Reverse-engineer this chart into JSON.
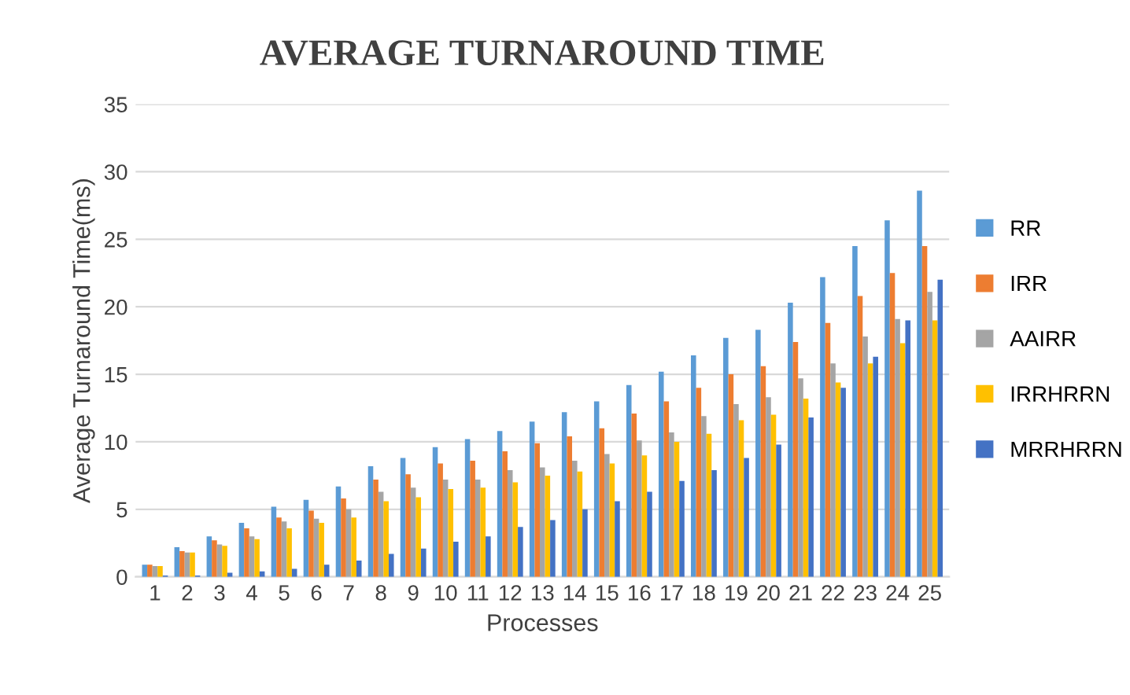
{
  "chart_data": {
    "type": "bar",
    "title": "AVERAGE TURNAROUND TIME",
    "xlabel": "Processes",
    "ylabel": "Average Turnaround Time(ms)",
    "categories": [
      "1",
      "2",
      "3",
      "4",
      "5",
      "6",
      "7",
      "8",
      "9",
      "10",
      "11",
      "12",
      "13",
      "14",
      "15",
      "16",
      "17",
      "18",
      "19",
      "20",
      "21",
      "22",
      "23",
      "24",
      "25"
    ],
    "series": [
      {
        "name": "RR",
        "color": "#5b9bd5",
        "values": [
          0.9,
          2.2,
          3.0,
          4.0,
          5.2,
          5.7,
          6.7,
          8.2,
          8.8,
          9.6,
          10.2,
          10.8,
          11.5,
          12.2,
          13.0,
          14.2,
          15.2,
          16.4,
          17.7,
          18.3,
          20.3,
          22.2,
          24.5,
          26.4,
          28.6
        ]
      },
      {
        "name": "IRR",
        "color": "#ed7d31",
        "values": [
          0.9,
          1.9,
          2.7,
          3.6,
          4.4,
          4.9,
          5.8,
          7.2,
          7.6,
          8.4,
          8.6,
          9.3,
          9.9,
          10.4,
          11.0,
          12.1,
          13.0,
          14.0,
          15.0,
          15.6,
          17.4,
          18.8,
          20.8,
          22.5,
          24.5
        ]
      },
      {
        "name": "AAIRR",
        "color": "#a5a5a5",
        "values": [
          0.8,
          1.8,
          2.4,
          3.0,
          4.1,
          4.3,
          5.0,
          6.3,
          6.6,
          7.2,
          7.2,
          7.9,
          8.1,
          8.6,
          9.1,
          10.1,
          10.7,
          11.9,
          12.8,
          13.3,
          14.7,
          15.8,
          17.8,
          19.1,
          21.1
        ]
      },
      {
        "name": "IRRHRRN",
        "color": "#ffc000",
        "values": [
          0.8,
          1.8,
          2.3,
          2.8,
          3.6,
          4.0,
          4.4,
          5.6,
          5.9,
          6.5,
          6.6,
          7.0,
          7.5,
          7.8,
          8.4,
          9.0,
          10.0,
          10.6,
          11.6,
          12.0,
          13.2,
          14.4,
          15.8,
          17.3,
          19.0
        ]
      },
      {
        "name": "MRRHRRN",
        "color": "#4472c4",
        "values": [
          0.1,
          0.1,
          0.3,
          0.4,
          0.6,
          0.9,
          1.2,
          1.7,
          2.1,
          2.6,
          3.0,
          3.7,
          4.2,
          5.0,
          5.6,
          6.3,
          7.1,
          7.9,
          8.8,
          9.8,
          11.8,
          14.0,
          16.3,
          19.0,
          22.0
        ]
      }
    ],
    "ylim": [
      0,
      35
    ],
    "yticks": [
      0,
      5,
      10,
      15,
      20,
      25,
      30,
      35
    ],
    "grid": "y",
    "legend": "right"
  }
}
